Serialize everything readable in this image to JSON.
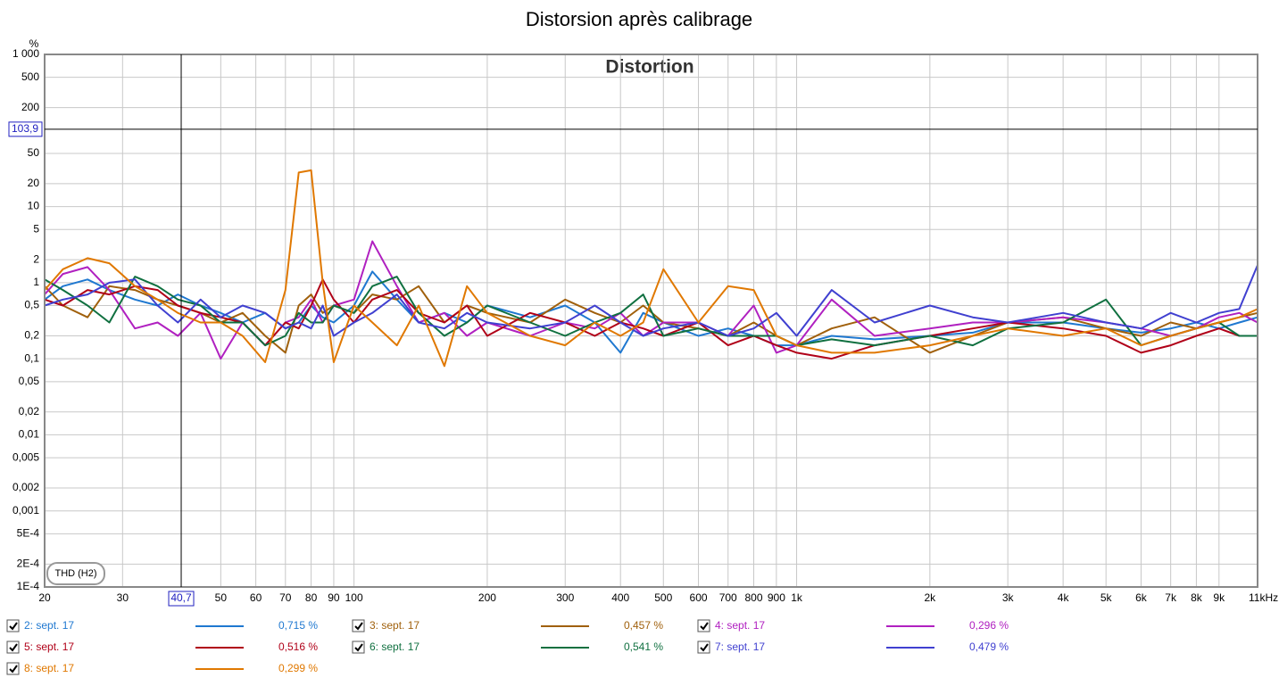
{
  "chart_data": {
    "type": "line",
    "title": "Distorsion après calibrage",
    "plot_title": "Distortion",
    "y_unit": "%",
    "mode_button": "THD (H2)",
    "log_x": true,
    "log_y": true,
    "grid": true,
    "xlim": [
      20,
      11000
    ],
    "ylim": [
      0.0001,
      1000
    ],
    "xticks": [
      20,
      30,
      50,
      60,
      70,
      80,
      90,
      100,
      200,
      300,
      400,
      500,
      600,
      700,
      800,
      900,
      {
        "value": 1000,
        "label": "1k"
      },
      {
        "value": 2000,
        "label": "2k"
      },
      {
        "value": 3000,
        "label": "3k"
      },
      {
        "value": 4000,
        "label": "4k"
      },
      {
        "value": 5000,
        "label": "5k"
      },
      {
        "value": 6000,
        "label": "6k"
      },
      {
        "value": 7000,
        "label": "7k"
      },
      {
        "value": 8000,
        "label": "8k"
      },
      {
        "value": 9000,
        "label": "9k"
      },
      {
        "value": 11000,
        "label": "11kHz"
      }
    ],
    "yticks": [
      {
        "value": 1000,
        "label": "1 000"
      },
      500,
      200,
      50,
      20,
      10,
      5,
      2,
      1,
      {
        "value": 0.5,
        "label": "0,5"
      },
      {
        "value": 0.2,
        "label": "0,2"
      },
      {
        "value": 0.1,
        "label": "0,1"
      },
      {
        "value": 0.05,
        "label": "0,05"
      },
      {
        "value": 0.02,
        "label": "0,02"
      },
      {
        "value": 0.01,
        "label": "0,01"
      },
      {
        "value": 0.005,
        "label": "0,005"
      },
      {
        "value": 0.002,
        "label": "0,002"
      },
      {
        "value": 0.001,
        "label": "0,001"
      },
      {
        "value": 0.0005,
        "label": "5E-4"
      },
      {
        "value": 0.0002,
        "label": "2E-4"
      },
      {
        "value": 0.0001,
        "label": "1E-4"
      }
    ],
    "cursor": {
      "x": {
        "value": 40.7,
        "label": "40,7"
      },
      "y": {
        "value": 103.9,
        "label": "103,9"
      }
    },
    "x": [
      20,
      22,
      25,
      28,
      32,
      36,
      40,
      45,
      50,
      56,
      63,
      70,
      75,
      80,
      85,
      90,
      100,
      110,
      125,
      140,
      160,
      180,
      200,
      250,
      300,
      350,
      400,
      450,
      500,
      600,
      700,
      800,
      900,
      1000,
      1200,
      1500,
      2000,
      2500,
      3000,
      4000,
      5000,
      6000,
      7000,
      8000,
      9000,
      10000,
      11000
    ],
    "series": [
      {
        "name": "2: sept. 17",
        "color": "#1f78d0",
        "cursor_value": 0.715,
        "cursor_value_label": "0,715 %",
        "values": [
          0.6,
          0.9,
          1.1,
          0.8,
          0.6,
          0.5,
          0.7,
          0.5,
          0.4,
          0.3,
          0.4,
          0.25,
          0.3,
          0.5,
          0.35,
          0.3,
          0.5,
          1.4,
          0.6,
          0.3,
          0.4,
          0.3,
          0.5,
          0.35,
          0.5,
          0.3,
          0.12,
          0.4,
          0.3,
          0.2,
          0.25,
          0.2,
          0.15,
          0.15,
          0.2,
          0.18,
          0.2,
          0.22,
          0.3,
          0.3,
          0.25,
          0.22,
          0.25,
          0.3,
          0.25,
          0.3,
          0.35
        ]
      },
      {
        "name": "3: sept. 17",
        "color": "#a0600c",
        "cursor_value": 0.457,
        "cursor_value_label": "0,457 %",
        "values": [
          0.9,
          0.5,
          0.35,
          0.9,
          0.8,
          0.6,
          0.5,
          0.4,
          0.3,
          0.4,
          0.2,
          0.12,
          0.5,
          0.7,
          0.4,
          0.5,
          0.4,
          0.7,
          0.6,
          0.9,
          0.3,
          0.5,
          0.4,
          0.3,
          0.6,
          0.4,
          0.3,
          0.5,
          0.3,
          0.25,
          0.2,
          0.3,
          0.2,
          0.15,
          0.25,
          0.35,
          0.12,
          0.2,
          0.3,
          0.35,
          0.25,
          0.2,
          0.3,
          0.25,
          0.3,
          0.35,
          0.4
        ]
      },
      {
        "name": "4: sept. 17",
        "color": "#b020c0",
        "cursor_value": 0.296,
        "cursor_value_label": "0,296 %",
        "values": [
          0.7,
          1.3,
          1.6,
          0.8,
          0.25,
          0.3,
          0.2,
          0.4,
          0.1,
          0.3,
          0.15,
          0.3,
          0.35,
          0.6,
          0.3,
          0.5,
          0.6,
          3.5,
          0.9,
          0.3,
          0.4,
          0.2,
          0.3,
          0.2,
          0.3,
          0.25,
          0.4,
          0.2,
          0.3,
          0.3,
          0.2,
          0.5,
          0.12,
          0.15,
          0.6,
          0.2,
          0.25,
          0.3,
          0.3,
          0.35,
          0.3,
          0.25,
          0.2,
          0.25,
          0.35,
          0.4,
          0.3
        ]
      },
      {
        "name": "5: sept. 17",
        "color": "#b00018",
        "cursor_value": 0.516,
        "cursor_value_label": "0,516 %",
        "values": [
          0.6,
          0.5,
          0.8,
          0.7,
          0.9,
          0.8,
          0.5,
          0.4,
          0.35,
          0.3,
          0.15,
          0.3,
          0.25,
          0.5,
          1.1,
          0.6,
          0.3,
          0.6,
          0.8,
          0.4,
          0.3,
          0.5,
          0.2,
          0.4,
          0.3,
          0.2,
          0.3,
          0.25,
          0.2,
          0.3,
          0.15,
          0.2,
          0.15,
          0.12,
          0.1,
          0.15,
          0.2,
          0.25,
          0.3,
          0.25,
          0.2,
          0.12,
          0.15,
          0.2,
          0.25,
          0.2,
          0.2
        ]
      },
      {
        "name": "6: sept. 17",
        "color": "#107040",
        "cursor_value": 0.541,
        "cursor_value_label": "0,541 %",
        "values": [
          1.1,
          0.8,
          0.5,
          0.3,
          1.2,
          0.9,
          0.6,
          0.5,
          0.3,
          0.3,
          0.15,
          0.2,
          0.4,
          0.3,
          0.3,
          0.5,
          0.4,
          0.9,
          1.2,
          0.4,
          0.2,
          0.3,
          0.5,
          0.3,
          0.2,
          0.3,
          0.4,
          0.7,
          0.2,
          0.25,
          0.2,
          0.2,
          0.2,
          0.15,
          0.18,
          0.15,
          0.2,
          0.15,
          0.25,
          0.3,
          0.6,
          0.15,
          0.2,
          0.25,
          0.3,
          0.2,
          0.2
        ]
      },
      {
        "name": "7: sept. 17",
        "color": "#4040d0",
        "cursor_value": 0.479,
        "cursor_value_label": "0,479 %",
        "values": [
          0.5,
          0.6,
          0.7,
          1.0,
          1.1,
          0.5,
          0.3,
          0.6,
          0.35,
          0.5,
          0.4,
          0.25,
          0.3,
          0.25,
          0.5,
          0.2,
          0.3,
          0.4,
          0.7,
          0.3,
          0.25,
          0.4,
          0.3,
          0.25,
          0.3,
          0.5,
          0.3,
          0.2,
          0.25,
          0.3,
          0.2,
          0.25,
          0.4,
          0.2,
          0.8,
          0.3,
          0.5,
          0.35,
          0.3,
          0.4,
          0.3,
          0.25,
          0.4,
          0.3,
          0.4,
          0.45,
          1.7
        ]
      },
      {
        "name": "8: sept. 17",
        "color": "#e07800",
        "cursor_value": 0.299,
        "cursor_value_label": "0,299 %",
        "values": [
          0.8,
          1.5,
          2.1,
          1.8,
          0.9,
          0.6,
          0.4,
          0.3,
          0.3,
          0.2,
          0.09,
          0.8,
          28,
          30,
          1.0,
          0.09,
          0.5,
          0.3,
          0.15,
          0.5,
          0.08,
          0.9,
          0.4,
          0.2,
          0.15,
          0.3,
          0.2,
          0.3,
          1.5,
          0.3,
          0.9,
          0.8,
          0.2,
          0.15,
          0.12,
          0.12,
          0.15,
          0.2,
          0.25,
          0.2,
          0.25,
          0.15,
          0.2,
          0.25,
          0.3,
          0.35,
          0.45
        ]
      }
    ]
  }
}
